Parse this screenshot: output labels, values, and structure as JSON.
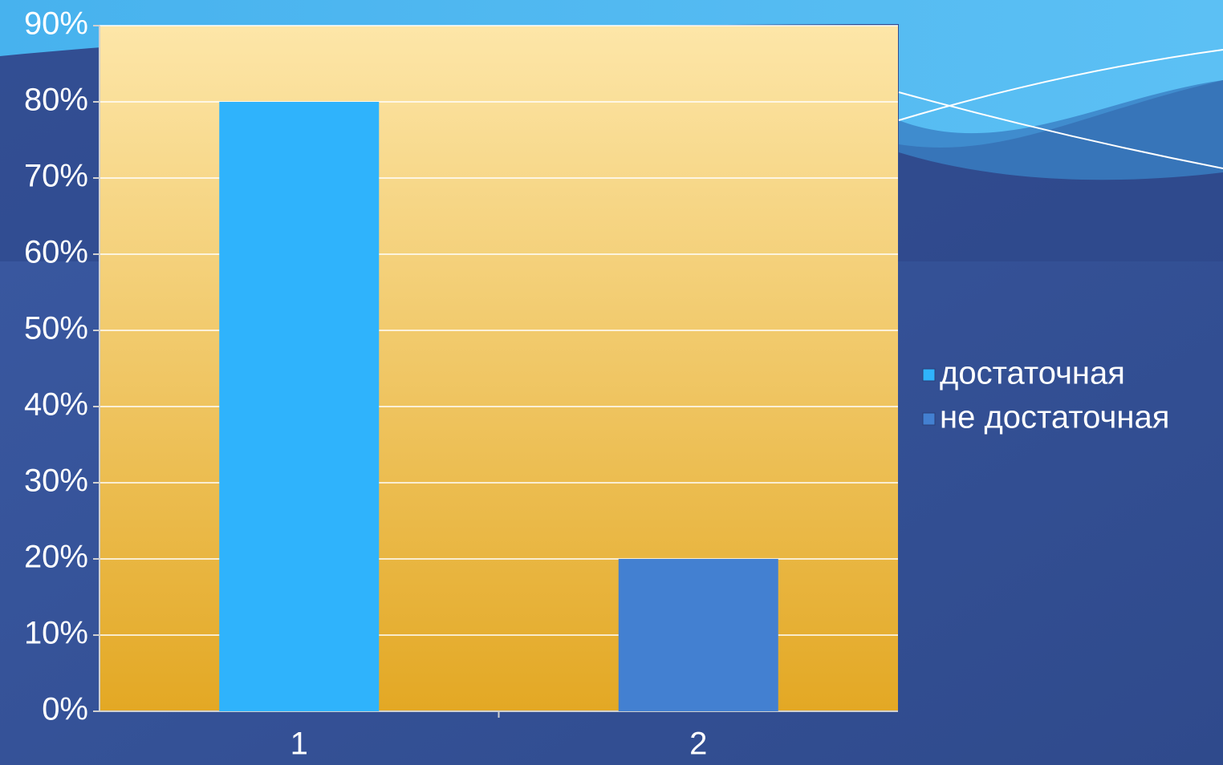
{
  "chart_data": {
    "type": "bar",
    "categories": [
      "1",
      "2"
    ],
    "series": [
      {
        "name": "достаточная",
        "color": "#2fb3fc",
        "values": [
          80,
          null
        ]
      },
      {
        "name": "не достаточная",
        "color": "#4380d1",
        "values": [
          null,
          20
        ]
      }
    ],
    "ylim": [
      0,
      90
    ],
    "yticks": [
      {
        "value": 0,
        "label": "0%"
      },
      {
        "value": 10,
        "label": "10%"
      },
      {
        "value": 20,
        "label": "20%"
      },
      {
        "value": 30,
        "label": "30%"
      },
      {
        "value": 40,
        "label": "40%"
      },
      {
        "value": 50,
        "label": "50%"
      },
      {
        "value": 60,
        "label": "60%"
      },
      {
        "value": 70,
        "label": "70%"
      },
      {
        "value": 80,
        "label": "80%"
      },
      {
        "value": 90,
        "label": "90%"
      }
    ],
    "grid": true,
    "legend": "right"
  }
}
